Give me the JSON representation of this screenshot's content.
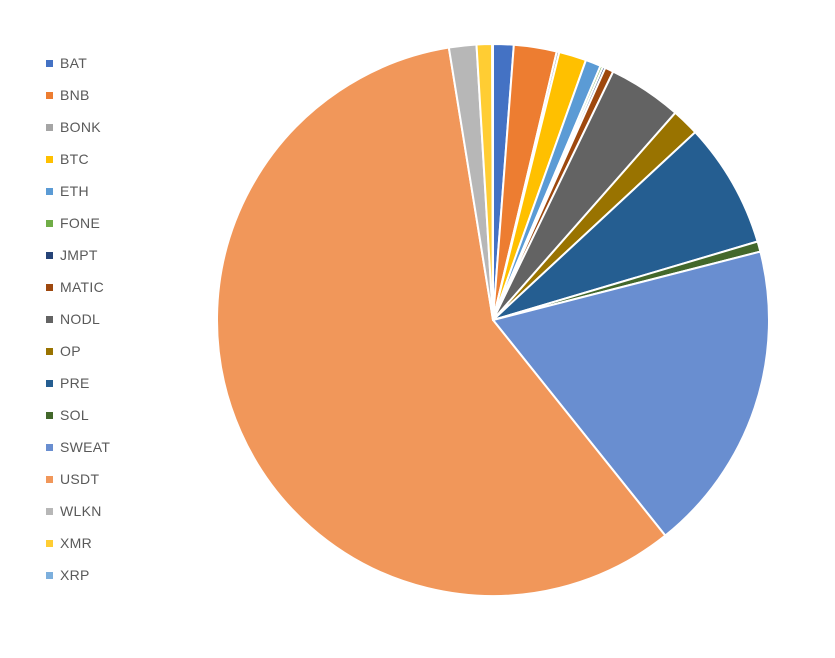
{
  "chart_data": {
    "type": "pie",
    "title": "",
    "legend_position": "left",
    "start_angle_deg": 0,
    "slices": [
      {
        "label": "BAT",
        "value": 1.2,
        "color": "#4472C4"
      },
      {
        "label": "BNB",
        "value": 2.5,
        "color": "#ED7D31"
      },
      {
        "label": "BONK",
        "value": 0.15,
        "color": "#A5A5A5"
      },
      {
        "label": "BTC",
        "value": 1.6,
        "color": "#FFC000"
      },
      {
        "label": "ETH",
        "value": 0.9,
        "color": "#5B9BD5"
      },
      {
        "label": "FONE",
        "value": 0.15,
        "color": "#70AD47"
      },
      {
        "label": "JMPT",
        "value": 0.15,
        "color": "#264478"
      },
      {
        "label": "MATIC",
        "value": 0.5,
        "color": "#9E480E"
      },
      {
        "label": "NODL",
        "value": 4.3,
        "color": "#636363"
      },
      {
        "label": "OP",
        "value": 1.6,
        "color": "#997300"
      },
      {
        "label": "PRE",
        "value": 7.3,
        "color": "#255E91"
      },
      {
        "label": "SOL",
        "value": 0.6,
        "color": "#43682B"
      },
      {
        "label": "SWEAT",
        "value": 18.2,
        "color": "#698ED0"
      },
      {
        "label": "USDT",
        "value": 58.0,
        "color": "#F1975A"
      },
      {
        "label": "WLKN",
        "value": 1.6,
        "color": "#B7B7B7"
      },
      {
        "label": "XMR",
        "value": 0.9,
        "color": "#FFCD33"
      },
      {
        "label": "XRP",
        "value": 0.05,
        "color": "#7CAFDD"
      }
    ]
  }
}
